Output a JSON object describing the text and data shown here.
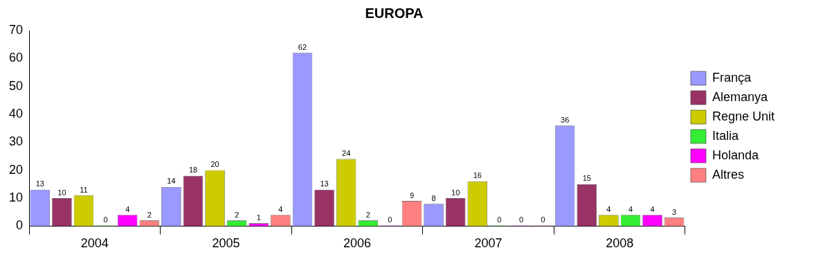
{
  "chart_data": {
    "type": "bar",
    "title": "EUROPA",
    "categories": [
      "2004",
      "2005",
      "2006",
      "2007",
      "2008"
    ],
    "series": [
      {
        "name": "França",
        "color": "#9999ff",
        "values": [
          13,
          14,
          62,
          8,
          36
        ]
      },
      {
        "name": "Alemanya",
        "color": "#993366",
        "values": [
          10,
          18,
          13,
          10,
          15
        ]
      },
      {
        "name": "Regne Unit",
        "color": "#cccc00",
        "values": [
          11,
          20,
          24,
          16,
          4
        ]
      },
      {
        "name": "Italia",
        "color": "#33ee33",
        "values": [
          0,
          2,
          2,
          0,
          4
        ]
      },
      {
        "name": "Holanda",
        "color": "#ff00ff",
        "values": [
          4,
          1,
          0,
          0,
          4
        ]
      },
      {
        "name": "Altres",
        "color": "#ff8080",
        "values": [
          2,
          4,
          9,
          0,
          3
        ]
      }
    ],
    "ylim": [
      0,
      70
    ],
    "yticks": [
      0,
      10,
      20,
      30,
      40,
      50,
      60,
      70
    ],
    "grid": false,
    "legend": "right",
    "data_labels": true
  }
}
